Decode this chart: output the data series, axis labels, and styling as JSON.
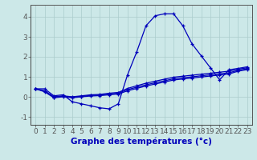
{
  "xlabel": "Graphe des températures (°c)",
  "background_color": "#cce8e8",
  "line_color": "#0000bb",
  "grid_color": "#aacccc",
  "ylim": [
    -1.4,
    4.6
  ],
  "xlim": [
    -0.5,
    23.5
  ],
  "x_ticks": [
    0,
    1,
    2,
    3,
    4,
    5,
    6,
    7,
    8,
    9,
    10,
    11,
    12,
    13,
    14,
    15,
    16,
    17,
    18,
    19,
    20,
    21,
    22,
    23
  ],
  "y_ticks": [
    -1,
    0,
    1,
    2,
    3,
    4
  ],
  "series": [
    [
      0.4,
      0.4,
      0.05,
      0.1,
      -0.25,
      -0.35,
      -0.45,
      -0.55,
      -0.6,
      -0.35,
      1.1,
      2.25,
      3.55,
      4.05,
      4.15,
      4.15,
      3.55,
      2.65,
      2.05,
      1.45,
      0.85,
      1.35,
      1.42,
      1.5
    ],
    [
      0.4,
      0.3,
      0.0,
      0.05,
      0.0,
      0.05,
      0.1,
      0.12,
      0.18,
      0.22,
      0.42,
      0.55,
      0.68,
      0.78,
      0.88,
      0.98,
      1.03,
      1.08,
      1.13,
      1.18,
      1.23,
      1.28,
      1.38,
      1.45
    ],
    [
      0.4,
      0.28,
      -0.02,
      0.03,
      -0.02,
      0.02,
      0.07,
      0.09,
      0.14,
      0.18,
      0.36,
      0.48,
      0.6,
      0.7,
      0.8,
      0.9,
      0.95,
      1.0,
      1.05,
      1.1,
      1.15,
      1.2,
      1.32,
      1.4
    ],
    [
      0.4,
      0.25,
      -0.05,
      0.0,
      -0.05,
      0.0,
      0.04,
      0.06,
      0.1,
      0.14,
      0.3,
      0.42,
      0.54,
      0.64,
      0.74,
      0.84,
      0.89,
      0.94,
      0.99,
      1.04,
      1.09,
      1.14,
      1.28,
      1.36
    ]
  ],
  "tick_fontsize": 6.5,
  "label_fontsize": 7.5,
  "spine_color": "#555555"
}
